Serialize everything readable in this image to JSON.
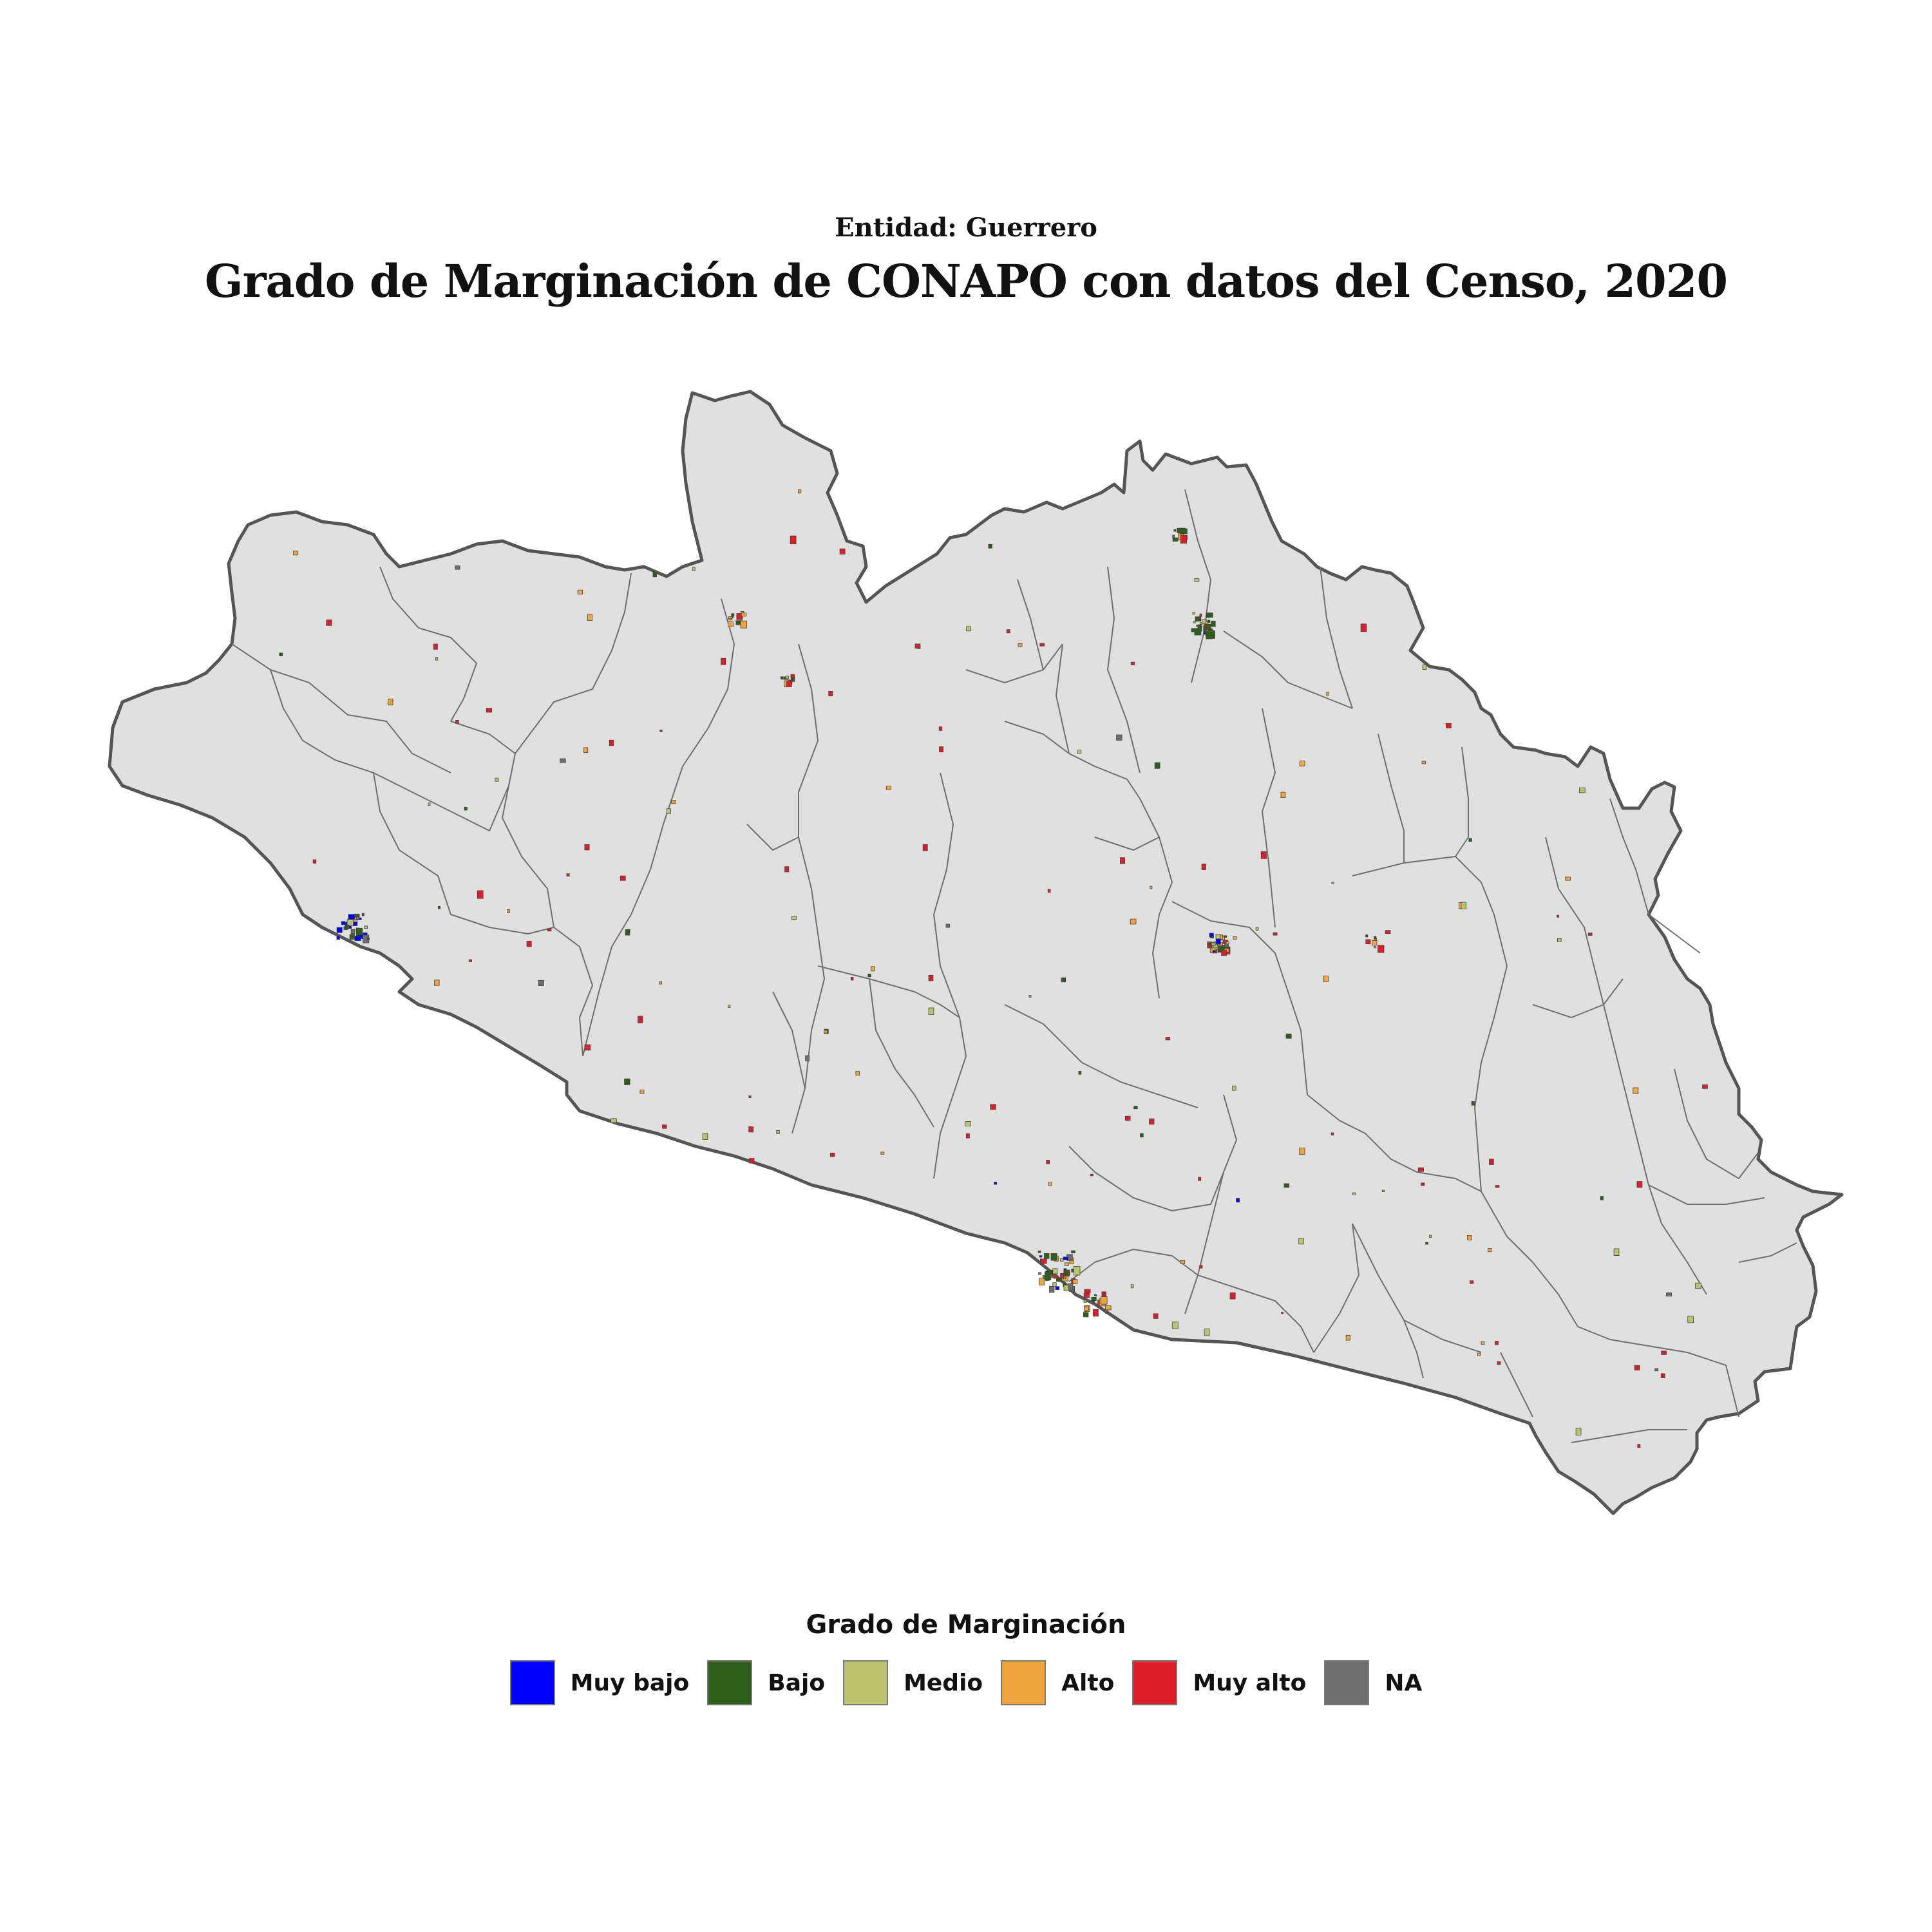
{
  "header": {
    "subtitle": "Entidad: Guerrero",
    "title": "Grado de Marginación de CONAPO con datos del Censo, 2020"
  },
  "legend": {
    "title": "Grado de Marginación",
    "items": [
      {
        "label": "Muy bajo",
        "color": "#0000ff"
      },
      {
        "label": "Bajo",
        "color": "#2f5e1a"
      },
      {
        "label": "Medio",
        "color": "#bec46e"
      },
      {
        "label": "Alto",
        "color": "#f0a53c"
      },
      {
        "label": "Muy alto",
        "color": "#dc1e28"
      },
      {
        "label": "NA",
        "color": "#6e6e6e"
      }
    ]
  },
  "map": {
    "land_color": "#e0e0e0",
    "border_color": "#555555"
  }
}
